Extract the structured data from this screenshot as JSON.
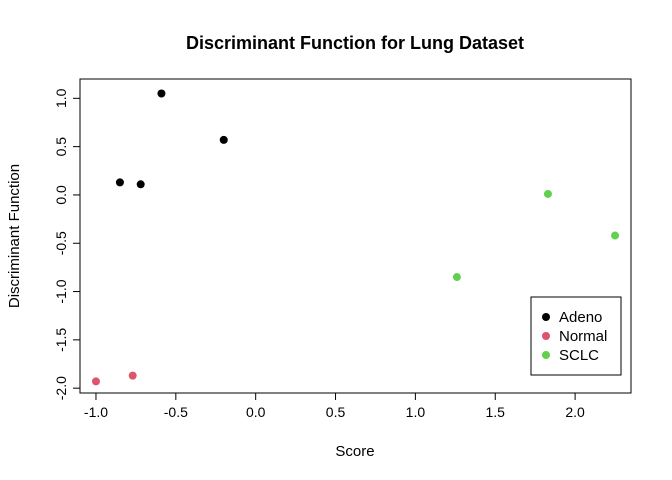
{
  "chart_data": {
    "type": "scatter",
    "title": "Discriminant Function for Lung Dataset",
    "xlabel": "Score",
    "ylabel": "Discriminant Function",
    "xlim": [
      -1.1,
      2.35
    ],
    "ylim": [
      -2.05,
      1.2
    ],
    "xticks": [
      -1.0,
      -0.5,
      0.0,
      0.5,
      1.0,
      1.5,
      2.0
    ],
    "xtick_labels": [
      "-1.0",
      "-0.5",
      "0.0",
      "0.5",
      "1.0",
      "1.5",
      "2.0"
    ],
    "yticks": [
      -2.0,
      -1.5,
      -1.0,
      -0.5,
      0.0,
      0.5,
      1.0
    ],
    "ytick_labels": [
      "-2.0",
      "-1.5",
      "-1.0",
      "-0.5",
      "0.0",
      "0.5",
      "1.0"
    ],
    "grid": false,
    "legend_position": "bottom-right",
    "series": [
      {
        "name": "Adeno",
        "color": "#000000",
        "points": [
          {
            "x": -0.59,
            "y": 1.05
          },
          {
            "x": -0.2,
            "y": 0.57
          },
          {
            "x": -0.85,
            "y": 0.13
          },
          {
            "x": -0.72,
            "y": 0.11
          }
        ]
      },
      {
        "name": "Normal",
        "color": "#DF536B",
        "points": [
          {
            "x": -1.0,
            "y": -1.93
          },
          {
            "x": -0.77,
            "y": -1.87
          }
        ]
      },
      {
        "name": "SCLC",
        "color": "#61D04F",
        "points": [
          {
            "x": 1.83,
            "y": 0.01
          },
          {
            "x": 2.25,
            "y": -0.42
          },
          {
            "x": 1.26,
            "y": -0.85
          }
        ]
      }
    ]
  }
}
